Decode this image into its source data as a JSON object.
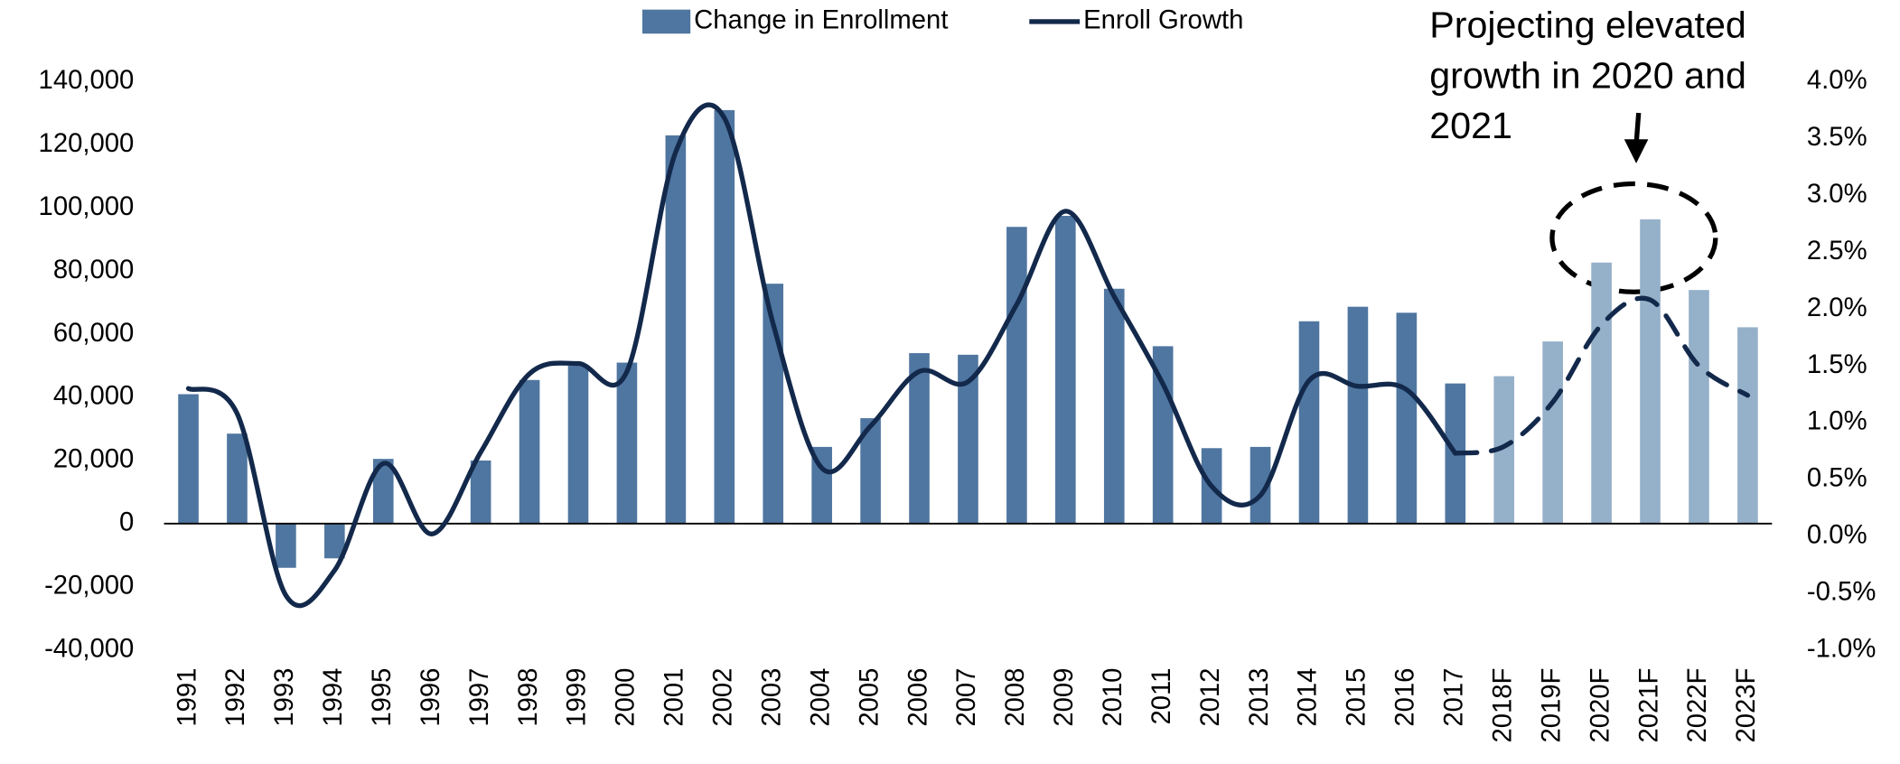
{
  "chart_data": {
    "type": "bar_line",
    "categories": [
      "1991",
      "1992",
      "1993",
      "1994",
      "1995",
      "1996",
      "1997",
      "1998",
      "1999",
      "2000",
      "2001",
      "2002",
      "2003",
      "2004",
      "2005",
      "2006",
      "2007",
      "2008",
      "2009",
      "2010",
      "2011",
      "2012",
      "2013",
      "2014",
      "2015",
      "2016",
      "2017",
      "2018F",
      "2019F",
      "2020F",
      "2021F",
      "2022F",
      "2023F"
    ],
    "forecast_from": "2018F",
    "series": [
      {
        "name": "Change in Enrollment",
        "type": "bar",
        "color": "#4f76a0",
        "forecast_color": "#95b0c9",
        "values": [
          41000,
          28500,
          -14000,
          -11000,
          20500,
          0,
          20000,
          45500,
          50000,
          51000,
          123000,
          131000,
          76000,
          24300,
          33400,
          54000,
          53500,
          94000,
          97500,
          74400,
          56200,
          23900,
          24300,
          64100,
          68700,
          66800,
          44400,
          46700,
          57700,
          82700,
          96400,
          74000,
          62200
        ]
      },
      {
        "name": "Enroll Growth",
        "type": "line",
        "axis": "y2",
        "color": "#13294b",
        "values": [
          1.3,
          1.08,
          -0.52,
          -0.3,
          0.64,
          0.02,
          0.74,
          1.43,
          1.52,
          1.45,
          3.38,
          3.68,
          1.87,
          0.6,
          0.97,
          1.45,
          1.36,
          2.04,
          2.86,
          2.11,
          1.34,
          0.44,
          0.36,
          1.37,
          1.32,
          1.29,
          0.73,
          0.79,
          1.18,
          1.86,
          2.08,
          1.5,
          1.24
        ]
      }
    ],
    "ylim": [
      -40000,
      140000
    ],
    "yticks": [
      {
        "value": -40000,
        "label": "-40,000"
      },
      {
        "value": -20000,
        "label": "-20,000"
      },
      0,
      {
        "value": 20000,
        "label": "20,000"
      },
      {
        "value": 40000,
        "label": "40,000"
      },
      {
        "value": 60000,
        "label": "60,000"
      },
      {
        "value": 80000,
        "label": "80,000"
      },
      {
        "value": 100000,
        "label": "100,000"
      },
      {
        "value": 120000,
        "label": "120,000"
      },
      {
        "value": 140000,
        "label": "140,000"
      }
    ],
    "y2lim": [
      -1.0,
      4.0
    ],
    "y2ticks": [
      {
        "value": -1.0,
        "label": "-1.0%"
      },
      {
        "value": -0.5,
        "label": "-0.5%"
      },
      {
        "value": 0,
        "label": "0.0%"
      },
      {
        "value": 0.5,
        "label": "0.5%"
      },
      {
        "value": 1.0,
        "label": "1.0%"
      },
      {
        "value": 1.5,
        "label": "1.5%"
      },
      {
        "value": 2.0,
        "label": "2.0%"
      },
      {
        "value": 2.5,
        "label": "2.5%"
      },
      {
        "value": 3.0,
        "label": "3.0%"
      },
      {
        "value": 3.5,
        "label": "3.5%"
      },
      {
        "value": 4.0,
        "label": "4.0%"
      }
    ],
    "legend": "top",
    "annotation": [
      "Projecting elevated",
      "growth in 2020 and",
      "2021"
    ]
  }
}
